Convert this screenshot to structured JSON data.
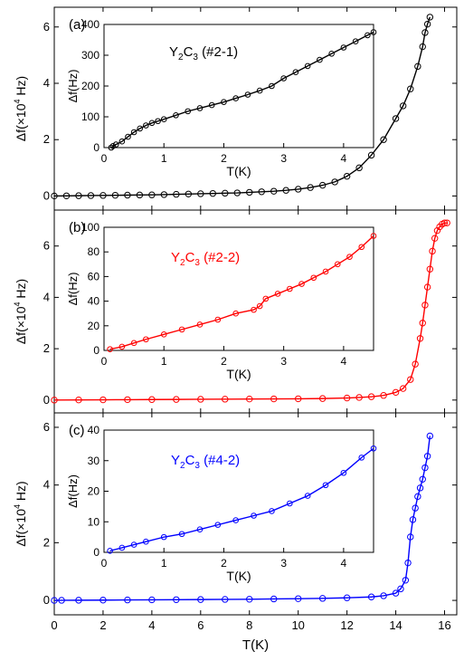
{
  "chart_data": [
    {
      "type": "scatter",
      "panel": "main",
      "label": "(a)",
      "color": "#000000",
      "xlabel": "",
      "ylabel": "Δf(×10",
      "ylabel_sup": "4",
      "ylabel_tail": " Hz)",
      "xlim": [
        0,
        16.5
      ],
      "ylim": [
        -0.5,
        6.7
      ],
      "xticks": [
        0,
        2,
        4,
        6,
        8,
        10,
        12,
        14,
        16
      ],
      "yticks": [
        0,
        2,
        4,
        6
      ],
      "x": [
        0,
        0.5,
        1,
        1.5,
        2,
        2.5,
        3,
        3.5,
        4,
        4.5,
        5,
        5.5,
        6,
        6.5,
        7,
        7.5,
        8,
        8.5,
        9,
        9.5,
        10,
        10.5,
        11,
        11.5,
        12,
        12.5,
        13,
        13.5,
        14,
        14.3,
        14.6,
        14.9,
        15.1,
        15.2,
        15.3,
        15.4
      ],
      "y": [
        0,
        0.005,
        0.01,
        0.015,
        0.02,
        0.025,
        0.03,
        0.035,
        0.04,
        0.05,
        0.06,
        0.07,
        0.08,
        0.09,
        0.1,
        0.11,
        0.13,
        0.15,
        0.17,
        0.2,
        0.24,
        0.3,
        0.38,
        0.5,
        0.7,
        1.0,
        1.45,
        2.0,
        2.75,
        3.2,
        3.8,
        4.6,
        5.3,
        5.8,
        6.1,
        6.35
      ]
    },
    {
      "type": "scatter",
      "panel": "inset",
      "of": 0,
      "annotation_main": "Y",
      "annotation_sub1": "2",
      "annotation_mid": "C",
      "annotation_sub2": "3",
      "annotation_tail": " (#2-1)",
      "color": "#000000",
      "xlabel": "T(K)",
      "ylabel": "Δf(Hz)",
      "xlim": [
        0,
        4.5
      ],
      "ylim": [
        0,
        400
      ],
      "xticks": [
        0,
        1,
        2,
        3,
        4
      ],
      "yticks": [
        0,
        100,
        200,
        300,
        400
      ],
      "x": [
        0.12,
        0.15,
        0.2,
        0.3,
        0.4,
        0.5,
        0.6,
        0.7,
        0.8,
        0.9,
        1.0,
        1.2,
        1.4,
        1.6,
        1.8,
        2.0,
        2.2,
        2.4,
        2.6,
        2.8,
        3.0,
        3.2,
        3.4,
        3.6,
        3.8,
        4.0,
        4.2,
        4.4,
        4.5
      ],
      "y": [
        0,
        5,
        10,
        20,
        35,
        50,
        62,
        72,
        80,
        86,
        92,
        105,
        118,
        128,
        138,
        148,
        160,
        172,
        185,
        200,
        225,
        245,
        265,
        285,
        305,
        325,
        345,
        365,
        375
      ]
    },
    {
      "type": "scatter",
      "panel": "main",
      "label": "(b)",
      "color": "#ff0000",
      "xlabel": "",
      "ylabel": "Δf(×10",
      "ylabel_sup": "4",
      "ylabel_tail": " Hz)",
      "xlim": [
        0,
        16.5
      ],
      "ylim": [
        -0.5,
        7.4
      ],
      "xticks": [
        0,
        2,
        4,
        6,
        8,
        10,
        12,
        14,
        16
      ],
      "yticks": [
        0,
        2,
        4,
        6
      ],
      "x": [
        0,
        1,
        2,
        3,
        4,
        5,
        6,
        7,
        8,
        9,
        10,
        11,
        12,
        12.5,
        13,
        13.5,
        14,
        14.3,
        14.6,
        14.8,
        15.0,
        15.1,
        15.2,
        15.3,
        15.4,
        15.5,
        15.6,
        15.7,
        15.8,
        15.9,
        16.0,
        16.1
      ],
      "y": [
        0,
        0.005,
        0.01,
        0.015,
        0.02,
        0.025,
        0.03,
        0.035,
        0.04,
        0.045,
        0.05,
        0.06,
        0.08,
        0.1,
        0.13,
        0.18,
        0.3,
        0.45,
        0.8,
        1.4,
        2.4,
        3.0,
        3.7,
        4.4,
        5.1,
        5.8,
        6.3,
        6.6,
        6.75,
        6.85,
        6.9,
        6.9
      ]
    },
    {
      "type": "scatter",
      "panel": "inset",
      "of": 2,
      "annotation_main": "Y",
      "annotation_sub1": "2",
      "annotation_mid": "C",
      "annotation_sub2": "3",
      "annotation_tail": " (#2-2)",
      "color": "#ff0000",
      "xlabel": "T(K)",
      "ylabel": "Δf(Hz)",
      "xlim": [
        0,
        4.5
      ],
      "ylim": [
        0,
        100
      ],
      "xticks": [
        0,
        1,
        2,
        3,
        4
      ],
      "yticks": [
        0,
        20,
        40,
        60,
        80,
        100
      ],
      "x": [
        0.1,
        0.3,
        0.5,
        0.7,
        1.0,
        1.3,
        1.6,
        1.9,
        2.2,
        2.5,
        2.6,
        2.7,
        2.9,
        3.1,
        3.3,
        3.5,
        3.7,
        3.9,
        4.1,
        4.3,
        4.5
      ],
      "y": [
        1,
        3,
        6,
        9,
        13,
        17,
        21,
        25,
        30,
        33,
        36,
        42,
        46,
        50,
        54,
        59,
        64,
        70,
        76,
        84,
        93
      ]
    },
    {
      "type": "scatter",
      "panel": "main",
      "label": "(c)",
      "color": "#0000ff",
      "xlabel": "T(K)",
      "ylabel": "Δf(×10",
      "ylabel_sup": "4",
      "ylabel_tail": " Hz)",
      "xlim": [
        0,
        16.5
      ],
      "ylim": [
        -0.5,
        6.5
      ],
      "xticks": [
        0,
        2,
        4,
        6,
        8,
        10,
        12,
        14,
        16
      ],
      "yticks": [
        0,
        2,
        4,
        6
      ],
      "x": [
        0,
        0.3,
        1,
        2,
        3,
        4,
        5,
        6,
        7,
        8,
        9,
        10,
        11,
        12,
        13,
        13.5,
        14,
        14.2,
        14.4,
        14.5,
        14.6,
        14.7,
        14.8,
        14.9,
        15.0,
        15.1,
        15.2,
        15.3,
        15.4
      ],
      "y": [
        0,
        0.003,
        0.006,
        0.01,
        0.015,
        0.02,
        0.025,
        0.03,
        0.035,
        0.04,
        0.05,
        0.06,
        0.07,
        0.09,
        0.12,
        0.16,
        0.25,
        0.4,
        0.7,
        1.3,
        2.2,
        2.8,
        3.2,
        3.6,
        3.9,
        4.2,
        4.6,
        5.0,
        5.7
      ]
    },
    {
      "type": "scatter",
      "panel": "inset",
      "of": 4,
      "annotation_main": "Y",
      "annotation_sub1": "2",
      "annotation_mid": "C",
      "annotation_sub2": "3",
      "annotation_tail": " (#4-2)",
      "color": "#0000ff",
      "xlabel": "T(K)",
      "ylabel": "Δf(Hz)",
      "xlim": [
        0,
        4.5
      ],
      "ylim": [
        0,
        40
      ],
      "xticks": [
        0,
        1,
        2,
        3,
        4
      ],
      "yticks": [
        0,
        10,
        20,
        30,
        40
      ],
      "x": [
        0.1,
        0.3,
        0.5,
        0.7,
        1.0,
        1.3,
        1.6,
        1.9,
        2.2,
        2.5,
        2.8,
        3.1,
        3.4,
        3.7,
        4.0,
        4.3,
        4.5
      ],
      "y": [
        0.5,
        1.5,
        2.5,
        3.5,
        5,
        6,
        7.5,
        9,
        10.5,
        12,
        13.5,
        16,
        18.5,
        22,
        26,
        31,
        34
      ]
    }
  ]
}
